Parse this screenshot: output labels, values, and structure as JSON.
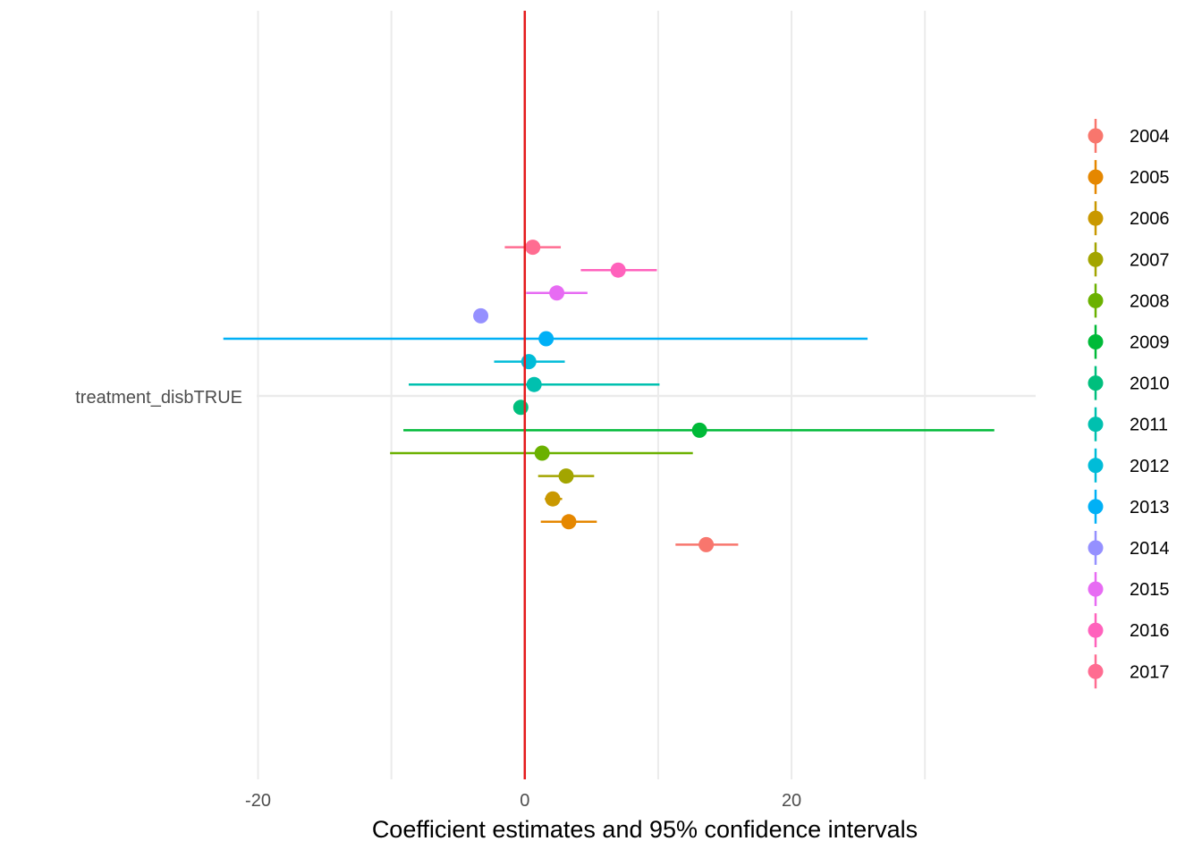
{
  "chart_data": {
    "type": "scatter",
    "subtype": "coefficient-plot-with-error-bars",
    "title": "",
    "xlabel": "Coefficient estimates and 95% confidence intervals",
    "ylabel": "",
    "y_category": "treatment_disbTRUE",
    "xlim": [
      -20.1,
      38.3
    ],
    "x_ticks": [
      -20,
      0,
      20
    ],
    "x_tick_labels": [
      "-20",
      "0",
      "20"
    ],
    "grid": true,
    "reference_line": {
      "x": 0,
      "color": "#e41a1c"
    },
    "legend_position": "right",
    "series": [
      {
        "name": "2004",
        "color": "#F8766D",
        "estimate": 13.6,
        "ci": [
          11.3,
          16.0
        ]
      },
      {
        "name": "2005",
        "color": "#E58700",
        "estimate": 3.3,
        "ci": [
          1.2,
          5.4
        ]
      },
      {
        "name": "2006",
        "color": "#C99800",
        "estimate": 2.1,
        "ci": [
          1.5,
          2.8
        ]
      },
      {
        "name": "2007",
        "color": "#A3A500",
        "estimate": 3.1,
        "ci": [
          1.0,
          5.2
        ]
      },
      {
        "name": "2008",
        "color": "#6BB100",
        "estimate": 1.3,
        "ci": [
          -10.1,
          12.6
        ]
      },
      {
        "name": "2009",
        "color": "#00BA38",
        "estimate": 13.1,
        "ci": [
          -9.1,
          35.2
        ]
      },
      {
        "name": "2010",
        "color": "#00BF7D",
        "estimate": -0.3,
        "ci": [
          -0.3,
          -0.3
        ]
      },
      {
        "name": "2011",
        "color": "#00C0AF",
        "estimate": 0.7,
        "ci": [
          -8.7,
          10.1
        ]
      },
      {
        "name": "2012",
        "color": "#00BCD8",
        "estimate": 0.3,
        "ci": [
          -2.3,
          3.0
        ]
      },
      {
        "name": "2013",
        "color": "#00B0F6",
        "estimate": 1.6,
        "ci": [
          -22.6,
          25.7
        ]
      },
      {
        "name": "2014",
        "color": "#9590FF",
        "estimate": -3.3,
        "ci": [
          -3.3,
          -3.3
        ]
      },
      {
        "name": "2015",
        "color": "#E76BF3",
        "estimate": 2.4,
        "ci": [
          0.1,
          4.7
        ]
      },
      {
        "name": "2016",
        "color": "#FF62BC",
        "estimate": 7.0,
        "ci": [
          4.2,
          9.9
        ]
      },
      {
        "name": "2017",
        "color": "#FF6C91",
        "estimate": 0.6,
        "ci": [
          -1.5,
          2.7
        ]
      }
    ]
  }
}
